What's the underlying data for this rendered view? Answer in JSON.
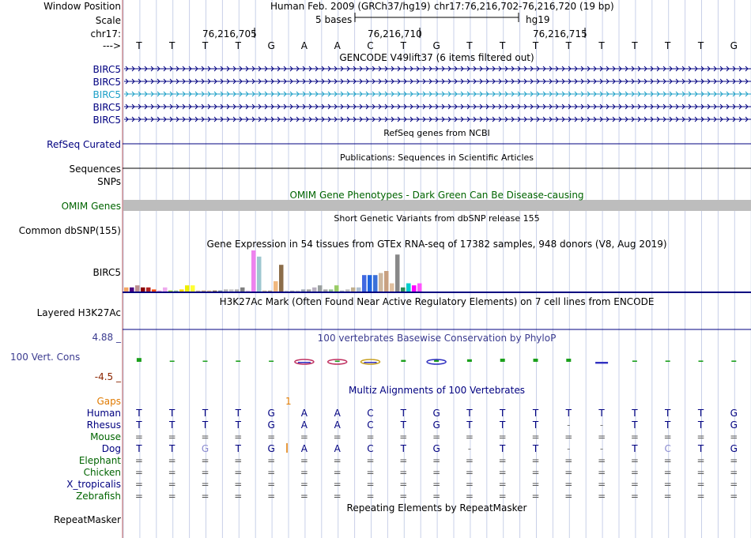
{
  "ruler": {
    "labels": {
      "window_position": "Window Position",
      "scale": "Scale",
      "chrom": "chr17:",
      "arrow": "--->"
    },
    "assembly": "Human Feb. 2009 (GRCh37/hg19)",
    "position": "chr17:76,216,702-76,216,720 (19 bp)",
    "scale_text": "5 bases",
    "scale_db": "hg19",
    "coords": [
      "76,216,705",
      "76,216,710",
      "76,216,715"
    ]
  },
  "bases": [
    "T",
    "T",
    "T",
    "T",
    "G",
    "A",
    "A",
    "C",
    "T",
    "G",
    "T",
    "T",
    "T",
    "T",
    "T",
    "T",
    "T",
    "T",
    "G"
  ],
  "gencode": {
    "title": "GENCODE V49lift37 (6 items filtered out)",
    "genes": [
      "BIRC5",
      "BIRC5",
      "BIRC5",
      "BIRC5",
      "BIRC5"
    ],
    "highlight_index": 2
  },
  "refseq": {
    "title": "RefSeq genes from NCBI",
    "label": "RefSeq Curated"
  },
  "publications": {
    "title": "Publications: Sequences in Scientific Articles",
    "label": "Sequences"
  },
  "snps_label": "SNPs",
  "omim": {
    "title": "OMIM Gene Phenotypes - Dark Green Can Be Disease-causing",
    "label": "OMIM Genes"
  },
  "dbsnp": {
    "title": "Short Genetic Variants from dbSNP release 155",
    "label": "Common dbSNP(155)"
  },
  "gtex": {
    "title": "Gene Expression in 54 tissues from GTEx RNA-seq of 17382 samples, 948 donors (V8, Aug 2019)",
    "label": "BIRC5",
    "values": [
      2,
      2,
      3,
      2,
      2,
      1,
      0.5,
      2,
      0.5,
      0.5,
      1,
      3,
      3,
      0.5,
      0.5,
      0.5,
      0.5,
      0.5,
      1,
      1,
      1,
      2,
      0.5,
      20,
      17,
      0.5,
      0.5,
      5,
      13,
      0.5,
      0.5,
      0.5,
      1,
      1,
      2,
      3,
      1,
      1,
      3,
      0.5,
      1,
      2,
      2,
      8,
      8,
      8,
      9,
      10,
      4,
      18,
      2,
      4,
      3,
      4
    ],
    "colors": [
      "#f4a460",
      "#4b0082",
      "#bc8f8f",
      "#8b0000",
      "#b22222",
      "#ff4500",
      "#dda0dd",
      "#eeaaee",
      "#9acd32",
      "#8fbc8f",
      "#ffd700",
      "#eeee00",
      "#ffff33",
      "#cdb79e",
      "#bfa17a",
      "#d2b48c",
      "#8b7355",
      "#778899",
      "#b0b0b0",
      "#c0c0c0",
      "#a9a9a9",
      "#808080",
      "#d8bfd8",
      "#ee82ee",
      "#9ec7d0",
      "#c8b89a",
      "#b5a48c",
      "#f0b880",
      "#8b6d4a",
      "#d0d0d0",
      "#b0b0b0",
      "#c8c8c8",
      "#9aa4b0",
      "#a0a0a0",
      "#b8b0c0",
      "#9aa0a0",
      "#a4a4a4",
      "#8fbc8f",
      "#99cc66",
      "#aeb4bc",
      "#bcbcbc",
      "#c0b090",
      "#b0c0d0",
      "#4169e1",
      "#1e64e1",
      "#3a70d8",
      "#cdb79e",
      "#c8a080",
      "#e0c0a0",
      "#888888",
      "#2e8b57",
      "#00cdcd",
      "#ff00ff",
      "#ff55ff"
    ]
  },
  "h3k27ac": {
    "title": "H3K27Ac Mark (Often Found Near Active Regulatory Elements) on 7 cell lines from ENCODE",
    "label": "Layered H3K27Ac"
  },
  "conservation": {
    "title": "100 vertebrates Basewise Conservation by PhyloP",
    "label": "100 Vert. Cons",
    "max": "4.88 _",
    "min": "-4.5 _",
    "scores": [
      0.6,
      0.1,
      0.1,
      0.2,
      0.1,
      -0.2,
      0.1,
      -0.1,
      0.3,
      0.4,
      0.4,
      0.5,
      0.5,
      0.5,
      -0.3,
      0.2,
      0.2,
      0.2,
      0.2
    ]
  },
  "multiz": {
    "title": "Multiz Alignments of 100 Vertebrates",
    "gaps_label": "Gaps",
    "gaps_value": "1",
    "species": [
      {
        "name": "Human",
        "color": "#000080",
        "bases": [
          "T",
          "T",
          "T",
          "T",
          "G",
          "A",
          "A",
          "C",
          "T",
          "G",
          "T",
          "T",
          "T",
          "T",
          "T",
          "T",
          "T",
          "T",
          "G"
        ]
      },
      {
        "name": "Rhesus",
        "color": "#000080",
        "bases": [
          "T",
          "T",
          "T",
          "T",
          "G",
          "A",
          "A",
          "C",
          "T",
          "G",
          "T",
          "T",
          "T",
          "-",
          "-",
          "T",
          "T",
          "T",
          "G"
        ]
      },
      {
        "name": "Mouse",
        "color": "#006400",
        "bases": [
          "=",
          "=",
          "=",
          "=",
          "=",
          "=",
          "=",
          "=",
          "=",
          "=",
          "=",
          "=",
          "=",
          "=",
          "=",
          "=",
          "=",
          "=",
          "="
        ]
      },
      {
        "name": "Dog",
        "color": "#000080",
        "bases": [
          "T",
          "T",
          "G",
          "T",
          "G",
          "A",
          "A",
          "C",
          "T",
          "G",
          "-",
          "T",
          "T",
          "-",
          "-",
          "T",
          "C",
          "T",
          "G"
        ]
      },
      {
        "name": "Elephant",
        "color": "#006400",
        "bases": [
          "=",
          "=",
          "=",
          "=",
          "=",
          "=",
          "=",
          "=",
          "=",
          "=",
          "=",
          "=",
          "=",
          "=",
          "=",
          "=",
          "=",
          "=",
          "="
        ]
      },
      {
        "name": "Chicken",
        "color": "#006400",
        "bases": [
          "=",
          "=",
          "=",
          "=",
          "=",
          "=",
          "=",
          "=",
          "=",
          "=",
          "=",
          "=",
          "=",
          "=",
          "=",
          "=",
          "=",
          "=",
          "="
        ]
      },
      {
        "name": "X_tropicalis",
        "color": "#000080",
        "bases": [
          "=",
          "=",
          "=",
          "=",
          "=",
          "=",
          "=",
          "=",
          "=",
          "=",
          "=",
          "=",
          "=",
          "=",
          "=",
          "=",
          "=",
          "=",
          "="
        ]
      },
      {
        "name": "Zebrafish",
        "color": "#006400",
        "bases": [
          "=",
          "=",
          "=",
          "=",
          "=",
          "=",
          "=",
          "=",
          "=",
          "=",
          "=",
          "=",
          "=",
          "=",
          "=",
          "=",
          "=",
          "=",
          "="
        ]
      }
    ]
  },
  "repeatmasker": {
    "title": "Repeating Elements by RepeatMasker",
    "label": "RepeatMasker"
  },
  "colors": {
    "navy": "#000080",
    "green": "#006400",
    "omim_gray": "#bdbdbd",
    "grid": "#c8d0e8"
  }
}
